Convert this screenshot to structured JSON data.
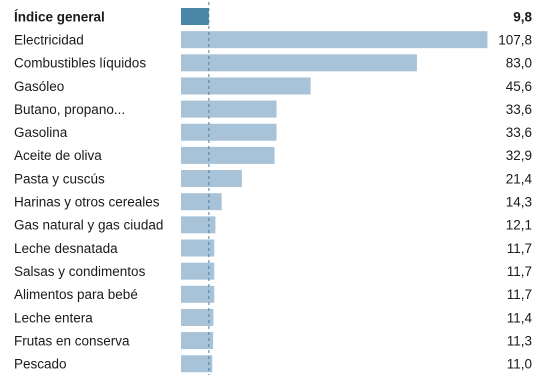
{
  "chart_data": {
    "type": "bar",
    "orientation": "horizontal",
    "categories": [
      "Índice general",
      "Electricidad",
      "Combustibles líquidos",
      "Gasóleo",
      "Butano, propano...",
      "Gasolina",
      "Aceite de oliva",
      "Pasta y cuscús",
      "Harinas y otros cereales",
      "Gas natural y gas ciudad",
      "Leche desnatada",
      "Salsas y condimentos",
      "Alimentos para bebé",
      "Leche entera",
      "Frutas en conserva",
      "Pescado"
    ],
    "values": [
      9.8,
      107.8,
      83.0,
      45.6,
      33.6,
      33.6,
      32.9,
      21.4,
      14.3,
      12.1,
      11.7,
      11.7,
      11.7,
      11.4,
      11.3,
      11.0
    ],
    "value_labels": [
      "9,8",
      "107,8",
      "83,0",
      "45,6",
      "33,6",
      "33,6",
      "32,9",
      "21,4",
      "14,3",
      "12,1",
      "11,7",
      "11,7",
      "11,7",
      "11,4",
      "11,3",
      "11,0"
    ],
    "highlight_index": 0,
    "reference_value": 9.8,
    "reference_line": "dashed",
    "xlim": [
      0,
      108
    ],
    "colors": {
      "highlight_bar": "#4a86a8",
      "bar": "#a8c2d8",
      "reference_line": "#4a7fa3",
      "text": "#1a1a1a"
    },
    "grid": false,
    "legend": "none"
  }
}
